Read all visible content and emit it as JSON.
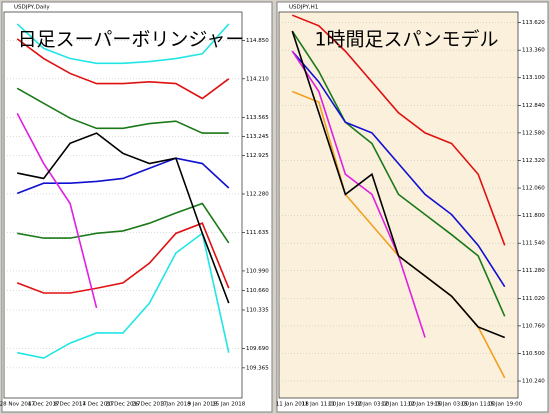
{
  "chart_data": [
    {
      "type": "line",
      "title": "USDJPY,Daily",
      "annotation": "日足スーパーボリンジャー",
      "background": "#ffffff",
      "grid": true,
      "categories": [
        "28 Nov 2017",
        "4 Dec 2017",
        "8 Dec 2017",
        "14 Dec 2017",
        "20 Dec 2017",
        "26 Dec 2017",
        "3 Jan 2018",
        "9 Jan 2018",
        "15 Jan 2018"
      ],
      "series": [
        {
          "color": "#22e5e5",
          "values": [
            115.13,
            114.72,
            114.55,
            114.47,
            114.47,
            114.5,
            114.55,
            114.63,
            115.13
          ]
        },
        {
          "color": "#e01010",
          "values": [
            114.88,
            114.55,
            114.3,
            114.13,
            114.13,
            114.16,
            114.13,
            113.88,
            114.21
          ]
        },
        {
          "color": "#1a7a1a",
          "values": [
            114.05,
            113.8,
            113.55,
            113.38,
            113.38,
            113.46,
            113.5,
            113.3,
            113.3
          ]
        },
        {
          "color": "#1010d0",
          "values": [
            112.29,
            112.46,
            112.46,
            112.49,
            112.54,
            112.71,
            112.88,
            112.79,
            112.38
          ]
        },
        {
          "color": "#1a7a1a",
          "values": [
            111.62,
            111.54,
            111.54,
            111.62,
            111.66,
            111.79,
            111.96,
            112.12,
            111.46
          ]
        },
        {
          "color": "#e01010",
          "values": [
            110.79,
            110.62,
            110.62,
            110.7,
            110.79,
            111.12,
            111.62,
            111.79,
            110.7
          ]
        },
        {
          "color": "#22e5e5",
          "values": [
            109.62,
            109.53,
            109.78,
            109.95,
            109.95,
            110.45,
            111.29,
            111.62,
            109.62
          ]
        },
        {
          "color": "#e020e0",
          "values": [
            113.63,
            112.79,
            112.12,
            110.37,
            null,
            null,
            null,
            null,
            null
          ]
        },
        {
          "color": "#000000",
          "values": [
            112.63,
            112.54,
            113.13,
            113.3,
            112.96,
            112.79,
            112.88,
            111.62,
            110.45
          ]
        }
      ],
      "ylim": [
        108.86,
        115.33
      ],
      "yticks": [
        {
          "value": 114.85,
          "label": "114.850"
        },
        {
          "value": 114.21,
          "label": "114.210"
        },
        {
          "value": 113.565,
          "label": "113.565"
        },
        {
          "value": 113.245,
          "label": "113.245"
        },
        {
          "value": 112.925,
          "label": "112.925"
        },
        {
          "value": 112.28,
          "label": "112.280"
        },
        {
          "value": 111.635,
          "label": "111.635"
        },
        {
          "value": 110.99,
          "label": "110.990"
        },
        {
          "value": 110.66,
          "label": "110.660"
        },
        {
          "value": 110.335,
          "label": "110.335"
        },
        {
          "value": 109.69,
          "label": "109.690"
        },
        {
          "value": 109.365,
          "label": "109.365"
        }
      ]
    },
    {
      "type": "line",
      "title": "USDJPY,H1",
      "annotation": "1時間足スパンモデル",
      "background": "#fbf0dc",
      "grid": true,
      "categories": [
        "11 Jan 2018",
        "11 Jan 11:00",
        "11 Jan 19:00",
        "12 Jan 03:00",
        "12 Jan 11:00",
        "12 Jan 19:00",
        "15 Jan 03:00",
        "15 Jan 11:00",
        "15 Jan 19:00"
      ],
      "series": [
        {
          "color": "#e01010",
          "values": [
            113.69,
            113.59,
            113.35,
            113.06,
            112.77,
            112.58,
            112.48,
            112.19,
            111.52
          ]
        },
        {
          "color": "#f0a020",
          "values": [
            112.97,
            112.87,
            112.0,
            111.71,
            111.42,
            111.23,
            111.04,
            110.75,
            110.27
          ]
        },
        {
          "color": "#1a7a1a",
          "values": [
            113.54,
            113.16,
            112.68,
            112.48,
            112.0,
            111.81,
            111.62,
            111.42,
            110.85
          ]
        },
        {
          "color": "#1010d0",
          "values": [
            113.35,
            113.06,
            112.68,
            112.58,
            112.29,
            112.0,
            111.81,
            111.52,
            111.13
          ]
        },
        {
          "color": "#e020e0",
          "values": [
            113.35,
            112.97,
            112.19,
            112.0,
            111.42,
            110.65,
            null,
            null,
            null
          ]
        },
        {
          "color": "#000000",
          "values": [
            113.54,
            112.77,
            112.0,
            112.19,
            111.42,
            111.23,
            111.04,
            110.75,
            110.65
          ]
        }
      ],
      "ylim": [
        110.08,
        113.72
      ],
      "yticks": [
        {
          "value": 113.62,
          "label": "113.620"
        },
        {
          "value": 113.36,
          "label": "113.360"
        },
        {
          "value": 113.1,
          "label": "113.100"
        },
        {
          "value": 112.84,
          "label": "112.840"
        },
        {
          "value": 112.58,
          "label": "112.580"
        },
        {
          "value": 112.32,
          "label": "112.320"
        },
        {
          "value": 112.06,
          "label": "112.060"
        },
        {
          "value": 111.8,
          "label": "111.800"
        },
        {
          "value": 111.54,
          "label": "111.540"
        },
        {
          "value": 111.28,
          "label": "111.280"
        },
        {
          "value": 111.02,
          "label": "111.020"
        },
        {
          "value": 110.76,
          "label": "110.760"
        },
        {
          "value": 110.5,
          "label": "110.500"
        },
        {
          "value": 110.24,
          "label": "110.240"
        }
      ]
    }
  ]
}
